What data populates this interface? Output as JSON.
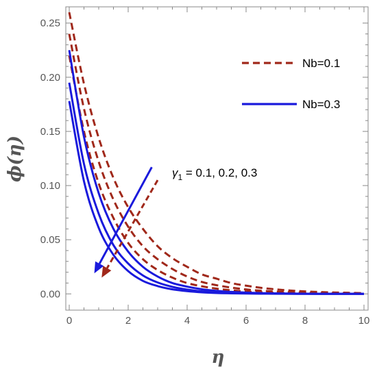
{
  "chart_data": {
    "type": "line",
    "xlabel": "η",
    "ylabel": "ϕ(η)",
    "xlim": [
      0,
      10
    ],
    "ylim": [
      -0.015,
      0.265
    ],
    "x_ticks": [
      0,
      2,
      4,
      6,
      8,
      10
    ],
    "y_ticks": [
      0.0,
      0.05,
      0.1,
      0.15,
      0.2,
      0.25
    ],
    "x_tick_labels": [
      "0",
      "2",
      "4",
      "6",
      "8",
      "10"
    ],
    "y_tick_labels": [
      "0.00",
      "0.05",
      "0.10",
      "0.15",
      "0.20",
      "0.25"
    ],
    "grid": false,
    "legend_position": "top-right",
    "legend": [
      {
        "label": "Nb=0.1",
        "style": "dashed",
        "color": "#a0281a"
      },
      {
        "label": "Nb=0.3",
        "style": "solid",
        "color": "#1a1adc"
      }
    ],
    "annotation": {
      "symbol": "γ",
      "subscript": "1",
      "text": " = 0.1,  0.2,  0.3"
    },
    "x": [
      0,
      0.5,
      1,
      1.5,
      2,
      2.5,
      3,
      3.5,
      4,
      4.5,
      5,
      5.5,
      6,
      6.5,
      7,
      7.5,
      8,
      8.5,
      9,
      9.5,
      10
    ],
    "series": [
      {
        "group": "Nb=0.1",
        "gamma1": 0.1,
        "values": [
          0.26,
          0.194,
          0.144,
          0.107,
          0.08,
          0.06,
          0.044,
          0.033,
          0.025,
          0.018,
          0.014,
          0.01,
          0.0076,
          0.0056,
          0.0042,
          0.0031,
          0.0023,
          0.0017,
          0.0013,
          0.001,
          0.0007
        ]
      },
      {
        "group": "Nb=0.1",
        "gamma1": 0.2,
        "values": [
          0.24,
          0.171,
          0.122,
          0.087,
          0.062,
          0.044,
          0.032,
          0.023,
          0.016,
          0.011,
          0.008,
          0.0058,
          0.0041,
          0.0029,
          0.0021,
          0.0015,
          0.0011,
          0.0008,
          0.0005,
          0.0004,
          0.0003
        ]
      },
      {
        "group": "Nb=0.1",
        "gamma1": 0.3,
        "values": [
          0.22,
          0.15,
          0.102,
          0.07,
          0.047,
          0.032,
          0.022,
          0.015,
          0.01,
          0.007,
          0.0048,
          0.0033,
          0.0022,
          0.0015,
          0.001,
          0.0007,
          0.0005,
          0.0003,
          0.0002,
          0.0002,
          0.0001
        ]
      },
      {
        "group": "Nb=0.3",
        "gamma1": 0.1,
        "values": [
          0.225,
          0.145,
          0.093,
          0.06,
          0.039,
          0.025,
          0.016,
          0.01,
          0.0067,
          0.0043,
          0.0028,
          0.0018,
          0.0012,
          0.0007,
          0.0005,
          0.0003,
          0.0002,
          0.0001,
          0.0001,
          0.0001,
          0.0
        ]
      },
      {
        "group": "Nb=0.3",
        "gamma1": 0.2,
        "values": [
          0.195,
          0.12,
          0.074,
          0.045,
          0.028,
          0.017,
          0.0105,
          0.0065,
          0.004,
          0.0024,
          0.0015,
          0.0009,
          0.0006,
          0.0003,
          0.0002,
          0.0001,
          0.0001,
          0.0,
          0.0,
          0.0,
          0.0
        ]
      },
      {
        "group": "Nb=0.3",
        "gamma1": 0.3,
        "values": [
          0.178,
          0.104,
          0.061,
          0.036,
          0.021,
          0.012,
          0.0072,
          0.0042,
          0.0025,
          0.0014,
          0.0008,
          0.0005,
          0.0003,
          0.0002,
          0.0001,
          0.0001,
          0.0,
          0.0,
          0.0,
          0.0,
          0.0
        ]
      }
    ],
    "arrows": [
      {
        "group": "Nb=0.1",
        "from": [
          3.0,
          0.105
        ],
        "to": [
          1.1,
          0.015
        ]
      },
      {
        "group": "Nb=0.3",
        "from": [
          2.8,
          0.117
        ],
        "to": [
          0.85,
          0.019
        ]
      }
    ]
  }
}
